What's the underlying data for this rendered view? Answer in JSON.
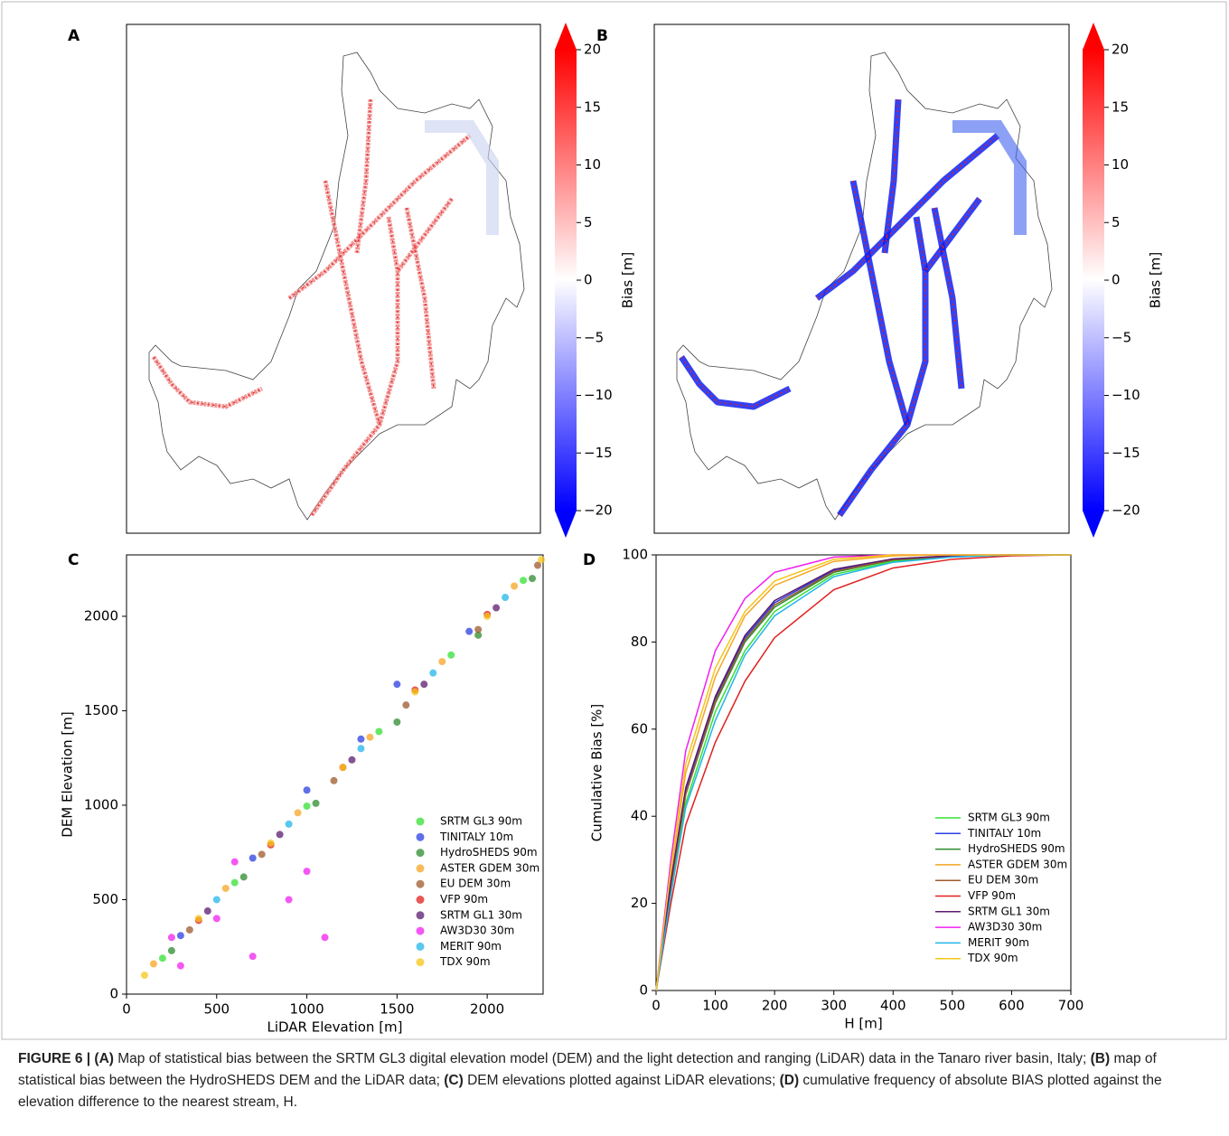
{
  "chart_data": [
    {
      "type": "map",
      "panel_label": "A",
      "colorbar": {
        "label": "Bias [m]",
        "clim": [
          -20,
          20
        ],
        "ticks": [
          20,
          15,
          10,
          5,
          0,
          {
            "value": -5,
            "label": "−5"
          },
          {
            "value": -10,
            "label": "−10"
          },
          {
            "value": -15,
            "label": "−15"
          },
          {
            "value": -20,
            "label": "−20"
          }
        ]
      },
      "bias_style": "mild"
    },
    {
      "type": "map",
      "panel_label": "B",
      "colorbar": {
        "label": "Bias [m]",
        "clim": [
          -20,
          20
        ],
        "ticks": [
          20,
          15,
          10,
          5,
          0,
          {
            "value": -5,
            "label": "−5"
          },
          {
            "value": -10,
            "label": "−10"
          },
          {
            "value": -15,
            "label": "−15"
          },
          {
            "value": -20,
            "label": "−20"
          }
        ]
      },
      "bias_style": "strong"
    },
    {
      "type": "scatter",
      "panel_label": "C",
      "x_label": "LiDAR Elevation [m]",
      "y_label": "DEM Elevation [m]",
      "xlim": [
        0,
        2310
      ],
      "ylim": [
        0,
        2325
      ],
      "xticks": [
        0,
        500,
        1000,
        1500,
        2000
      ],
      "yticks": [
        0,
        500,
        1000,
        1500,
        2000
      ],
      "legend": "lower right",
      "series": [
        {
          "name": "SRTM GL3 90m",
          "color": "#33e033",
          "x": [
            200,
            600,
            1000,
            1400,
            1800,
            2200
          ],
          "y": [
            190,
            590,
            995,
            1390,
            1795,
            2190
          ]
        },
        {
          "name": "TINITALY 10m",
          "color": "#2b3fe0",
          "x": [
            300,
            700,
            1000,
            1300,
            1500,
            1900
          ],
          "y": [
            310,
            720,
            1080,
            1350,
            1640,
            1920
          ]
        },
        {
          "name": "HydroSHEDS 90m",
          "color": "#2e8b2e",
          "x": [
            250,
            650,
            1050,
            1500,
            1950,
            2250
          ],
          "y": [
            230,
            620,
            1010,
            1440,
            1900,
            2200
          ]
        },
        {
          "name": "ASTER GDEM 30m",
          "color": "#f5a623",
          "x": [
            150,
            550,
            950,
            1350,
            1750,
            2150
          ],
          "y": [
            160,
            560,
            960,
            1360,
            1760,
            2160
          ]
        },
        {
          "name": "EU DEM 30m",
          "color": "#9c5a2e",
          "x": [
            350,
            750,
            1150,
            1550,
            1950,
            2280
          ],
          "y": [
            340,
            740,
            1130,
            1530,
            1930,
            2270
          ]
        },
        {
          "name": "VFP 90m",
          "color": "#e0201e",
          "x": [
            400,
            800,
            1200,
            1600,
            2000
          ],
          "y": [
            390,
            790,
            1200,
            1610,
            2010
          ]
        },
        {
          "name": "SRTM GL1 30m",
          "color": "#5b1a6e",
          "x": [
            450,
            850,
            1250,
            1650,
            2050
          ],
          "y": [
            440,
            845,
            1240,
            1640,
            2045
          ]
        },
        {
          "name": "AW3D30 30m",
          "color": "#f020f0",
          "x": [
            250,
            300,
            600,
            700,
            900,
            1100,
            1000,
            500
          ],
          "y": [
            300,
            150,
            700,
            200,
            500,
            300,
            650,
            400
          ]
        },
        {
          "name": "MERIT 90m",
          "color": "#22b5e8",
          "x": [
            500,
            900,
            1300,
            1700,
            2100
          ],
          "y": [
            500,
            900,
            1300,
            1700,
            2100
          ]
        },
        {
          "name": "TDX 90m",
          "color": "#f5c518",
          "x": [
            100,
            400,
            800,
            1200,
            1600,
            2000,
            2300
          ],
          "y": [
            100,
            400,
            800,
            1200,
            1600,
            2000,
            2300
          ]
        }
      ]
    },
    {
      "type": "line",
      "panel_label": "D",
      "x_label": "H [m]",
      "y_label": "Cumulative Bias [%]",
      "xlim": [
        0,
        700
      ],
      "ylim": [
        0,
        100
      ],
      "xticks": [
        0,
        100,
        200,
        300,
        400,
        500,
        600,
        700
      ],
      "yticks": [
        0,
        20,
        40,
        60,
        80,
        100
      ],
      "legend": "lower right",
      "x": [
        0,
        25,
        50,
        100,
        150,
        200,
        300,
        400,
        500,
        600,
        700
      ],
      "series": [
        {
          "name": "SRTM GL3 90m",
          "color": "#33e033",
          "values": [
            0,
            23,
            43,
            64,
            78,
            87,
            95.5,
            98.5,
            99.6,
            100,
            100
          ]
        },
        {
          "name": "TINITALY 10m",
          "color": "#2b3fe0",
          "values": [
            0,
            25,
            46,
            67,
            81,
            89,
            96.5,
            99,
            99.8,
            100,
            100
          ]
        },
        {
          "name": "HydroSHEDS 90m",
          "color": "#2e8b2e",
          "values": [
            0,
            24,
            45,
            66,
            80,
            88,
            96,
            98.8,
            99.7,
            100,
            100
          ]
        },
        {
          "name": "ASTER GDEM 30m",
          "color": "#f5a623",
          "values": [
            0,
            27,
            50,
            72,
            86,
            93,
            98.5,
            99.8,
            100,
            100,
            100
          ]
        },
        {
          "name": "EU DEM 30m",
          "color": "#9c5a2e",
          "values": [
            0,
            24,
            45,
            66.5,
            80.5,
            88.5,
            96.2,
            98.9,
            99.7,
            100,
            100
          ]
        },
        {
          "name": "VFP 90m",
          "color": "#e0201e",
          "values": [
            0,
            20,
            38,
            57,
            71,
            81,
            92,
            97,
            99,
            99.8,
            100
          ]
        },
        {
          "name": "SRTM GL1 30m",
          "color": "#5b1a6e",
          "values": [
            0,
            25,
            46.5,
            67.5,
            81.5,
            89.5,
            96.7,
            99.1,
            99.8,
            100,
            100
          ]
        },
        {
          "name": "AW3D30 30m",
          "color": "#f020f0",
          "values": [
            0,
            30,
            55,
            78,
            90,
            96,
            99.5,
            100,
            100,
            100,
            100
          ]
        },
        {
          "name": "MERIT 90m",
          "color": "#22b5e8",
          "values": [
            0,
            22,
            42,
            62,
            77,
            86,
            95,
            98.3,
            99.5,
            100,
            100
          ]
        },
        {
          "name": "TDX 90m",
          "color": "#f5c518",
          "values": [
            0,
            28,
            52,
            74,
            87,
            94,
            99,
            100,
            100,
            100,
            100
          ]
        }
      ]
    }
  ],
  "caption": [
    {
      "text": "FIGURE 6 | (A)",
      "bold": true
    },
    {
      "text": " Map of statistical bias between the SRTM GL3 digital elevation model (DEM) and the light detection and ranging (LiDAR) data in the Tanaro river basin, Italy; ",
      "bold": false
    },
    {
      "text": "(B)",
      "bold": true
    },
    {
      "text": " map of statistical bias between the HydroSHEDS DEM and the LiDAR data; ",
      "bold": false
    },
    {
      "text": "(C)",
      "bold": true
    },
    {
      "text": " DEM elevations plotted against LiDAR elevations; ",
      "bold": false
    },
    {
      "text": "(D)",
      "bold": true
    },
    {
      "text": " cumulative frequency of absolute BIAS plotted against the elevation difference to the nearest stream, H.",
      "bold": false
    }
  ]
}
